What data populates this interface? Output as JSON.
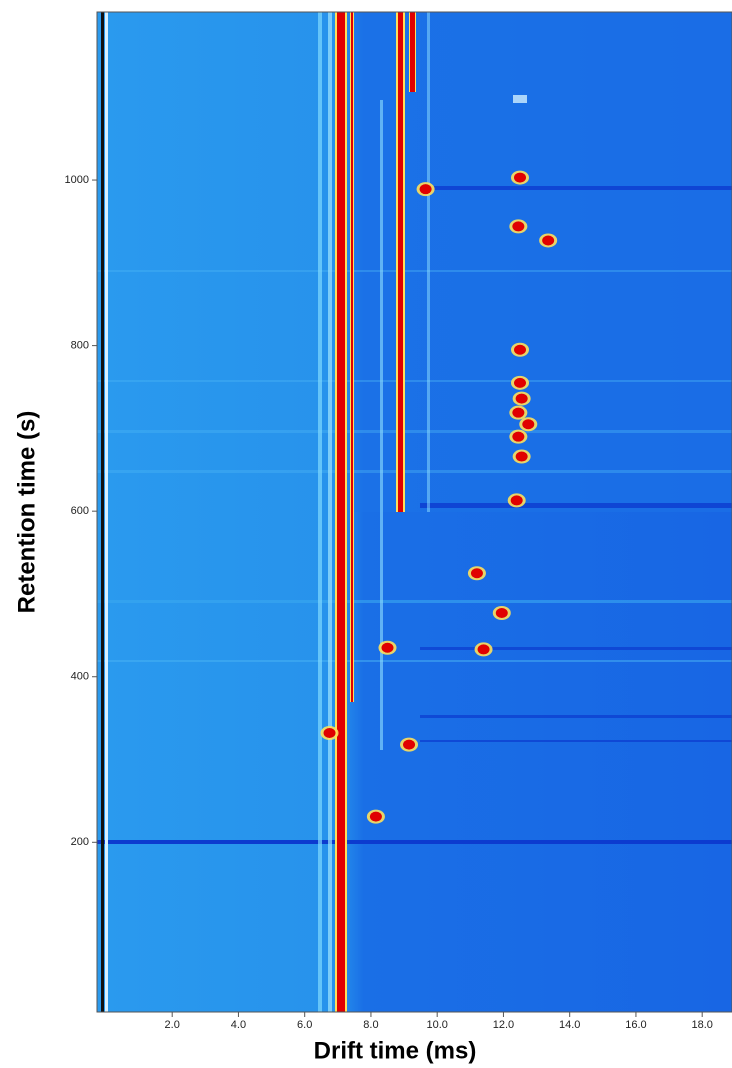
{
  "chart_data": {
    "type": "heatmap-peaks",
    "x_label": "Drift time (ms)",
    "y_label": "Retention time (s)",
    "xlim": [
      -0.27,
      18.9
    ],
    "ylim": [
      -5,
      1203
    ],
    "xticks": [
      {
        "value": 2,
        "label": "2.0"
      },
      {
        "value": 4,
        "label": "4.0"
      },
      {
        "value": 6,
        "label": "6.0"
      },
      {
        "value": 8,
        "label": "8.0"
      },
      {
        "value": 10,
        "label": "10.0"
      },
      {
        "value": 12,
        "label": "12.0"
      },
      {
        "value": 14,
        "label": "14.0"
      },
      {
        "value": 16,
        "label": "16.0"
      },
      {
        "value": 18,
        "label": "18.0"
      }
    ],
    "yticks": [
      200,
      400,
      600,
      800,
      1000
    ],
    "x": [
      12.5,
      12.45,
      13.35,
      12.5,
      12.5,
      12.55,
      12.45,
      12.75,
      12.45,
      12.55,
      12.4,
      9.65,
      11.4,
      9.15,
      6.75,
      8.15,
      11.2,
      11.95,
      8.5
    ],
    "values": [
      1003,
      944,
      927,
      795,
      755,
      736,
      719,
      705,
      690,
      666,
      613,
      989,
      433,
      318,
      332,
      231,
      525,
      477,
      435
    ],
    "color": "#e00000"
  }
}
